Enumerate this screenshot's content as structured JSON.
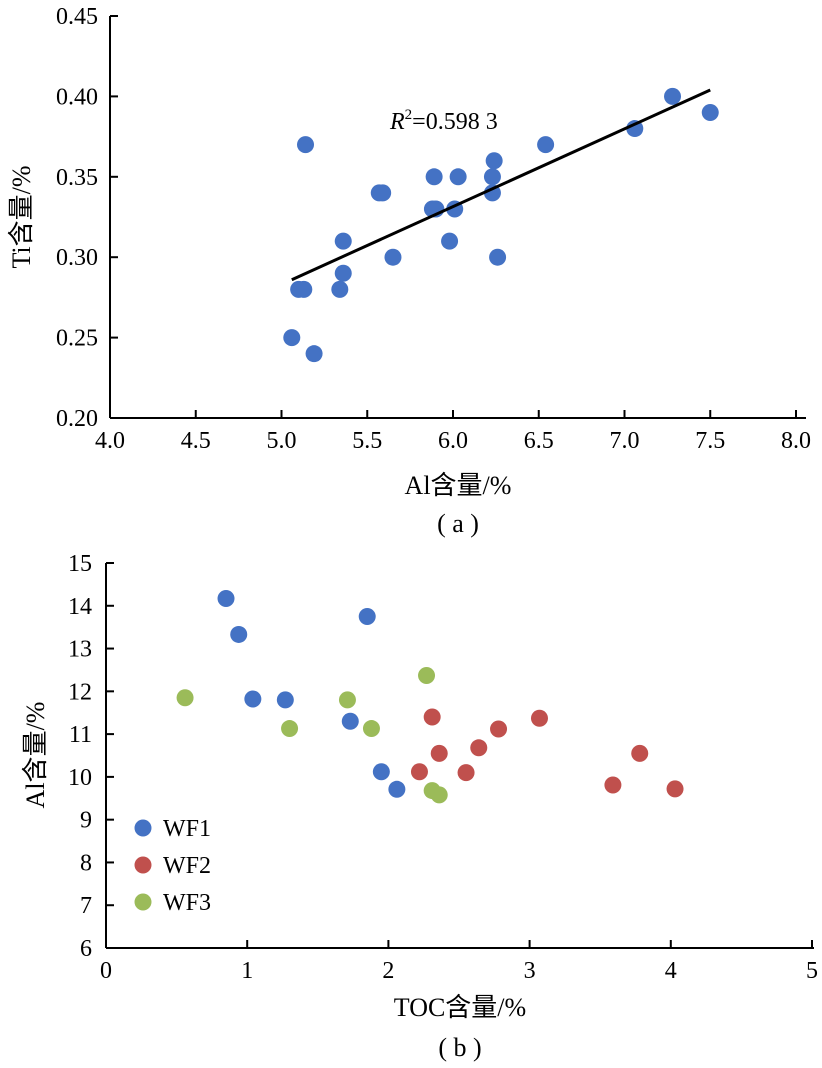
{
  "chart_data": [
    {
      "type": "scatter",
      "caption": "( a )",
      "xlabel": "Al含量/%",
      "ylabel": "Ti含量/%",
      "xlim": [
        4.0,
        8.0
      ],
      "ylim": [
        0.2,
        0.45
      ],
      "xticks": [
        "4.0",
        "4.5",
        "5.0",
        "5.5",
        "6.0",
        "6.5",
        "7.0",
        "7.5",
        "8.0"
      ],
      "yticks": [
        "0.20",
        "0.25",
        "0.30",
        "0.35",
        "0.40",
        "0.45"
      ],
      "grid": false,
      "annotation": {
        "prefix": "R",
        "sup": "2",
        "value": "=0.598 3"
      },
      "trendline": {
        "x": [
          5.06,
          7.5
        ],
        "y": [
          0.286,
          0.404
        ]
      },
      "series": [
        {
          "color": "#4472c4",
          "points": [
            [
              5.06,
              0.25
            ],
            [
              5.1,
              0.28
            ],
            [
              5.13,
              0.28
            ],
            [
              5.14,
              0.37
            ],
            [
              5.19,
              0.24
            ],
            [
              5.34,
              0.28
            ],
            [
              5.36,
              0.31
            ],
            [
              5.36,
              0.29
            ],
            [
              5.57,
              0.34
            ],
            [
              5.59,
              0.34
            ],
            [
              5.65,
              0.3
            ],
            [
              5.88,
              0.33
            ],
            [
              5.89,
              0.35
            ],
            [
              5.9,
              0.33
            ],
            [
              5.98,
              0.31
            ],
            [
              6.01,
              0.33
            ],
            [
              6.03,
              0.35
            ],
            [
              6.23,
              0.34
            ],
            [
              6.23,
              0.35
            ],
            [
              6.24,
              0.36
            ],
            [
              6.26,
              0.3
            ],
            [
              6.54,
              0.37
            ],
            [
              7.06,
              0.38
            ],
            [
              7.28,
              0.4
            ],
            [
              7.5,
              0.39
            ]
          ]
        }
      ]
    },
    {
      "type": "scatter",
      "caption": "( b )",
      "xlabel": "TOC含量/%",
      "ylabel": "Al含量/%",
      "xlim": [
        0,
        5
      ],
      "ylim": [
        6,
        15
      ],
      "xticks": [
        "0",
        "1",
        "2",
        "3",
        "4",
        "5"
      ],
      "yticks": [
        "6",
        "7",
        "8",
        "9",
        "10",
        "11",
        "12",
        "13",
        "14",
        "15"
      ],
      "grid": false,
      "legend_position": "lower-left",
      "series": [
        {
          "name": "WF1",
          "color": "#4472c4",
          "points": [
            [
              0.85,
              14.17
            ],
            [
              0.94,
              13.33
            ],
            [
              1.04,
              11.82
            ],
            [
              1.27,
              11.8
            ],
            [
              1.73,
              11.3
            ],
            [
              1.85,
              13.75
            ],
            [
              1.95,
              10.12
            ],
            [
              2.06,
              9.71
            ]
          ]
        },
        {
          "name": "WF2",
          "color": "#c0504d",
          "points": [
            [
              2.22,
              10.12
            ],
            [
              2.31,
              11.4
            ],
            [
              2.36,
              10.55
            ],
            [
              2.55,
              10.1
            ],
            [
              2.64,
              10.68
            ],
            [
              2.78,
              11.12
            ],
            [
              3.07,
              11.37
            ],
            [
              3.59,
              9.81
            ],
            [
              3.78,
              10.55
            ],
            [
              4.03,
              9.72
            ]
          ]
        },
        {
          "name": "WF3",
          "color": "#9bbb59",
          "points": [
            [
              0.56,
              11.85
            ],
            [
              1.3,
              11.13
            ],
            [
              1.71,
              11.8
            ],
            [
              1.88,
              11.13
            ],
            [
              2.27,
              12.37
            ],
            [
              2.31,
              9.68
            ],
            [
              2.36,
              9.58
            ]
          ]
        }
      ]
    }
  ]
}
